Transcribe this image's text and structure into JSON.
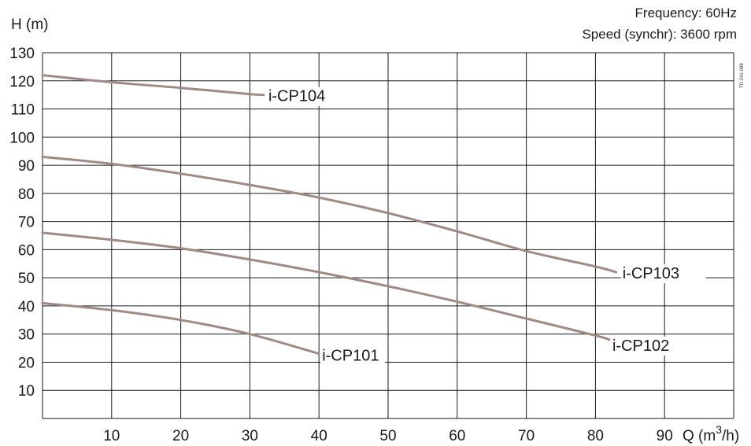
{
  "header": {
    "frequency": "Frequency: 60Hz",
    "speed": "Speed (synchr): 3600 rpm",
    "doc_code": "TD 241-088"
  },
  "chart_data": {
    "type": "line",
    "title": "",
    "xlabel": "Q (m",
    "xlabel_sup": "3",
    "xlabel_tail": "/h)",
    "ylabel": "H (m)",
    "xlim": [
      0,
      100
    ],
    "ylim": [
      0,
      130
    ],
    "xticks": [
      10,
      20,
      30,
      40,
      50,
      60,
      70,
      80,
      90
    ],
    "yticks": [
      10,
      20,
      30,
      40,
      50,
      60,
      70,
      80,
      90,
      100,
      110,
      120,
      130
    ],
    "grid": true,
    "curve_color": "#a08a84",
    "series": [
      {
        "name": "i-CP104",
        "x": [
          0,
          10,
          20,
          30,
          32
        ],
        "y": [
          122,
          119.5,
          117.5,
          115.3,
          115
        ]
      },
      {
        "name": "i-CP103",
        "x": [
          0,
          10,
          20,
          30,
          40,
          50,
          60,
          70,
          80,
          83
        ],
        "y": [
          93,
          90.5,
          87,
          83,
          78.5,
          73,
          66.5,
          59.5,
          54,
          52
        ]
      },
      {
        "name": "i-CP102",
        "x": [
          0,
          10,
          20,
          30,
          40,
          50,
          60,
          70,
          80,
          82
        ],
        "y": [
          66,
          63.5,
          60.5,
          56.5,
          52,
          47,
          41.5,
          35.5,
          29.5,
          28
        ]
      },
      {
        "name": "i-CP101",
        "x": [
          0,
          10,
          20,
          30,
          40
        ],
        "y": [
          41,
          38.5,
          35,
          30,
          23
        ]
      }
    ]
  }
}
